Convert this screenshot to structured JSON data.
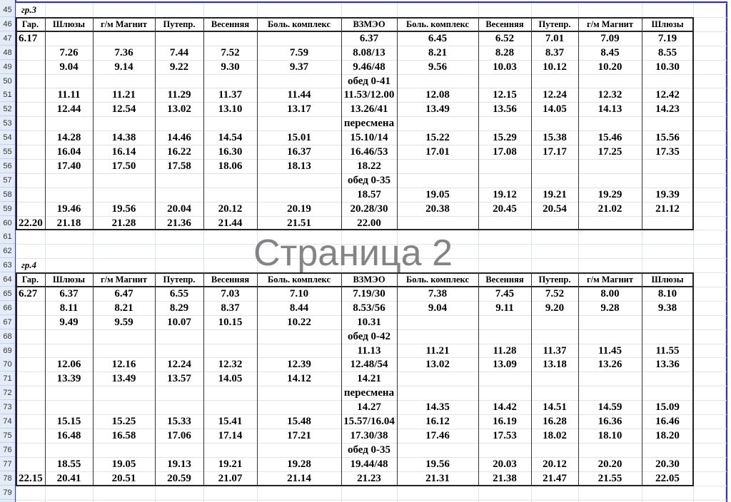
{
  "watermark": "Страница 2",
  "row_numbers": [
    "45",
    "46",
    "47",
    "48",
    "49",
    "50",
    "51",
    "52",
    "53",
    "54",
    "55",
    "56",
    "57",
    "58",
    "59",
    "60",
    "61",
    "62",
    "63",
    "64",
    "65",
    "66",
    "67",
    "68",
    "69",
    "70",
    "71",
    "72",
    "73",
    "74",
    "75",
    "76",
    "77",
    "78",
    "79"
  ],
  "group3": {
    "label": "гр.3",
    "headers": [
      "Гар.",
      "Шлюзы",
      "г/м Магнит",
      "Путепр.",
      "Весенняя",
      "Боль. комплекс",
      "ВЗМЭО",
      "Боль. комплекс",
      "Весенняя",
      "Путепр.",
      "г/м Магнит",
      "Шлюзы"
    ],
    "rows": [
      [
        "6.17",
        "",
        "",
        "",
        "",
        "",
        "6.37",
        "6.45",
        "6.52",
        "7.01",
        "7.09",
        "7.19"
      ],
      [
        "",
        "7.26",
        "7.36",
        "7.44",
        "7.52",
        "7.59",
        "8.08/13",
        "8.21",
        "8.28",
        "8.37",
        "8.45",
        "8.55"
      ],
      [
        "",
        "9.04",
        "9.14",
        "9.22",
        "9.30",
        "9.37",
        "9.46/48",
        "9.56",
        "10.03",
        "10.12",
        "10.20",
        "10.30"
      ],
      [
        "",
        "",
        "",
        "",
        "",
        "",
        "обед 0-41",
        "",
        "",
        "",
        "",
        ""
      ],
      [
        "",
        "11.11",
        "11.21",
        "11.29",
        "11.37",
        "11.44",
        "11.53/12.00",
        "12.08",
        "12.15",
        "12.24",
        "12.32",
        "12.42"
      ],
      [
        "",
        "12.44",
        "12.54",
        "13.02",
        "13.10",
        "13.17",
        "13.26/41",
        "13.49",
        "13.56",
        "14.05",
        "14.13",
        "14.23"
      ],
      [
        "",
        "",
        "",
        "",
        "",
        "",
        "пересмена",
        "",
        "",
        "",
        "",
        ""
      ],
      [
        "",
        "14.28",
        "14.38",
        "14.46",
        "14.54",
        "15.01",
        "15.10/14",
        "15.22",
        "15.29",
        "15.38",
        "15.46",
        "15.56"
      ],
      [
        "",
        "16.04",
        "16.14",
        "16.22",
        "16.30",
        "16.37",
        "16.46/53",
        "17.01",
        "17.08",
        "17.17",
        "17.25",
        "17.35"
      ],
      [
        "",
        "17.40",
        "17.50",
        "17.58",
        "18.06",
        "18.13",
        "18.22",
        "",
        "",
        "",
        "",
        ""
      ],
      [
        "",
        "",
        "",
        "",
        "",
        "",
        "обед 0-35",
        "",
        "",
        "",
        "",
        ""
      ],
      [
        "",
        "",
        "",
        "",
        "",
        "",
        "18.57",
        "19.05",
        "19.12",
        "19.21",
        "19.29",
        "19.39"
      ],
      [
        "",
        "19.46",
        "19.56",
        "20.04",
        "20.12",
        "20.19",
        "20.28/30",
        "20.38",
        "20.45",
        "20.54",
        "21.02",
        "21.12"
      ],
      [
        "22.20",
        "21.18",
        "21.28",
        "21.36",
        "21.44",
        "21.51",
        "22.00",
        "",
        "",
        "",
        "",
        ""
      ]
    ]
  },
  "group4": {
    "label": "гр.4",
    "headers": [
      "Гар.",
      "Шлюзы",
      "г/м Магнит",
      "Путепр.",
      "Весенняя",
      "Боль. комплекс",
      "ВЗМЭО",
      "Боль. комплекс",
      "Весенняя",
      "Путепр.",
      "г/м Магнит",
      "Шлюзы"
    ],
    "rows": [
      [
        "6.27",
        "6.37",
        "6.47",
        "6.55",
        "7.03",
        "7.10",
        "7.19/30",
        "7.38",
        "7.45",
        "7.52",
        "8.00",
        "8.10"
      ],
      [
        "",
        "8.11",
        "8.21",
        "8.29",
        "8.37",
        "8.44",
        "8.53/56",
        "9.04",
        "9.11",
        "9.20",
        "9.28",
        "9.38"
      ],
      [
        "",
        "9.49",
        "9.59",
        "10.07",
        "10.15",
        "10.22",
        "10.31",
        "",
        "",
        "",
        "",
        ""
      ],
      [
        "",
        "",
        "",
        "",
        "",
        "",
        "обед 0-42",
        "",
        "",
        "",
        "",
        ""
      ],
      [
        "",
        "",
        "",
        "",
        "",
        "",
        "11.13",
        "11.21",
        "11.28",
        "11.37",
        "11.45",
        "11.55"
      ],
      [
        "",
        "12.06",
        "12.16",
        "12.24",
        "12.32",
        "12.39",
        "12.48/54",
        "13.02",
        "13.09",
        "13.18",
        "13.26",
        "13.36"
      ],
      [
        "",
        "13.39",
        "13.49",
        "13.57",
        "14.05",
        "14.12",
        "14.21",
        "",
        "",
        "",
        "",
        ""
      ],
      [
        "",
        "",
        "",
        "",
        "",
        "",
        "пересмена",
        "",
        "",
        "",
        "",
        ""
      ],
      [
        "",
        "",
        "",
        "",
        "",
        "",
        "14.27",
        "14.35",
        "14.42",
        "14.51",
        "14.59",
        "15.09"
      ],
      [
        "",
        "15.15",
        "15.25",
        "15.33",
        "15.41",
        "15.48",
        "15.57/16.04",
        "16.12",
        "16.19",
        "16.28",
        "16.36",
        "16.46"
      ],
      [
        "",
        "16.48",
        "16.58",
        "17.06",
        "17.14",
        "17.21",
        "17.30/38",
        "17.46",
        "17.53",
        "18.02",
        "18.10",
        "18.20"
      ],
      [
        "",
        "",
        "",
        "",
        "",
        "",
        "обед 0-35",
        "",
        "",
        "",
        "",
        ""
      ],
      [
        "",
        "18.55",
        "19.05",
        "19.13",
        "19.21",
        "19.28",
        "19.44/48",
        "19.56",
        "20.03",
        "20.12",
        "20.20",
        "20.30"
      ],
      [
        "22.15",
        "20.41",
        "20.51",
        "20.59",
        "21.07",
        "21.14",
        "21.23",
        "21.31",
        "21.38",
        "21.47",
        "21.55",
        "22.05"
      ]
    ]
  }
}
